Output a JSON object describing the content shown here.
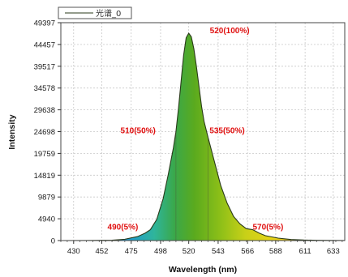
{
  "chart_data": {
    "type": "area",
    "title": "",
    "xlabel": "Wavelength (nm)",
    "ylabel": "Intensity",
    "xlim": [
      420,
      642
    ],
    "ylim": [
      0,
      49397
    ],
    "x_ticks": [
      430,
      452,
      475,
      498,
      520,
      543,
      566,
      588,
      611,
      633
    ],
    "y_ticks": [
      0,
      4940,
      9879,
      14819,
      19759,
      24698,
      29638,
      34578,
      39517,
      44457,
      49397
    ],
    "grid": true,
    "legend_position": "top-left",
    "series": [
      {
        "name": "光谱_0",
        "line_color": "#2a3a1a",
        "x": [
          420,
          440,
          460,
          470,
          480,
          486,
          490,
          495,
          500,
          504,
          508,
          510,
          512,
          514,
          516,
          518,
          520,
          522,
          524,
          526,
          528,
          530,
          532,
          535,
          540,
          545,
          550,
          555,
          560,
          565,
          570,
          575,
          580,
          590,
          600,
          610,
          620,
          630,
          642
        ],
        "y": [
          0,
          20,
          90,
          300,
          900,
          1700,
          2470,
          4800,
          9500,
          15000,
          21000,
          24698,
          30000,
          36000,
          42000,
          46000,
          47000,
          46200,
          43500,
          39500,
          35000,
          30500,
          27000,
          23500,
          18000,
          12500,
          8500,
          5500,
          3800,
          2700,
          2470,
          1700,
          1100,
          550,
          250,
          120,
          60,
          30,
          10
        ]
      }
    ],
    "annotations": [
      {
        "text": "520(100%)",
        "x": 520,
        "y": 47000
      },
      {
        "text": "510(50%)",
        "x": 510,
        "y": 24698
      },
      {
        "text": "535(50%)",
        "x": 535,
        "y": 24698
      },
      {
        "text": "490(5%)",
        "x": 490,
        "y": 2470
      },
      {
        "text": "570(5%)",
        "x": 570,
        "y": 2470
      }
    ],
    "marker_lines_x": [
      510,
      535
    ]
  }
}
